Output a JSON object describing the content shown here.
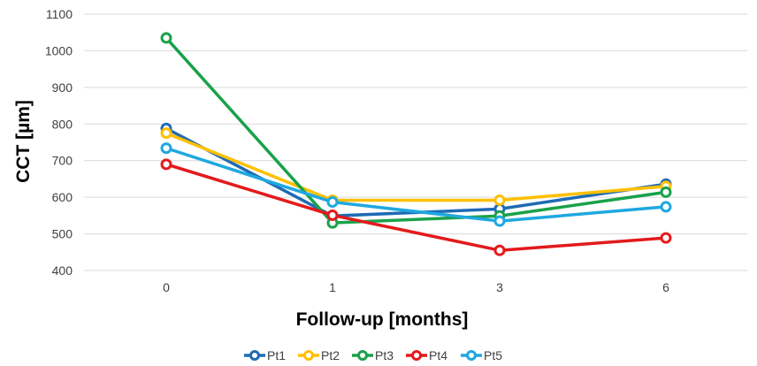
{
  "chart_data": {
    "type": "line",
    "xlabel": "Follow-up [months]",
    "ylabel": "CCT [µm]",
    "categories": [
      "0",
      "1",
      "3",
      "6"
    ],
    "ylim": [
      400,
      1100
    ],
    "yticks": [
      400,
      500,
      600,
      700,
      800,
      900,
      1000,
      1100
    ],
    "grid": true,
    "legend_position": "bottom",
    "series": [
      {
        "name": "Pt1",
        "color": "#1f6bb5",
        "values": [
          788,
          549,
          568,
          636
        ]
      },
      {
        "name": "Pt2",
        "color": "#ffc000",
        "values": [
          775,
          592,
          592,
          630
        ]
      },
      {
        "name": "Pt3",
        "color": "#1aa14a",
        "values": [
          1035,
          530,
          549,
          614
        ]
      },
      {
        "name": "Pt4",
        "color": "#e31a1c",
        "values": [
          690,
          551,
          455,
          489
        ]
      },
      {
        "name": "Pt5",
        "color": "#1fa8e0",
        "values": [
          734,
          587,
          535,
          574
        ]
      }
    ]
  }
}
